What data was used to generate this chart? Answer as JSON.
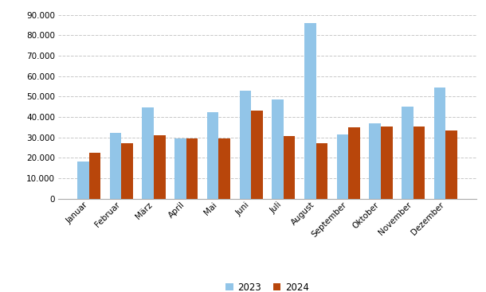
{
  "months": [
    "Januar",
    "Februar",
    "März",
    "April",
    "Mai",
    "Juni",
    "Juli",
    "August",
    "September",
    "Oktober",
    "November",
    "Dezember"
  ],
  "values_2023": [
    18000,
    32000,
    44500,
    29500,
    42500,
    53000,
    48500,
    86000,
    31500,
    37000,
    45000,
    54500
  ],
  "values_2024": [
    22500,
    27000,
    31000,
    29500,
    29500,
    43000,
    30500,
    27000,
    35000,
    35500,
    35500,
    33500
  ],
  "color_2023": "#92C5E8",
  "color_2024": "#B8460B",
  "legend_2023": "2023",
  "legend_2024": "2024",
  "ylim": [
    0,
    93000
  ],
  "yticks": [
    0,
    10000,
    20000,
    30000,
    40000,
    50000,
    60000,
    70000,
    80000,
    90000
  ],
  "ytick_labels": [
    "0",
    "10.000",
    "20.000",
    "30.000",
    "40.000",
    "50.000",
    "60.000",
    "70.000",
    "80.000",
    "90.000"
  ],
  "background_color": "#ffffff",
  "grid_color": "#c8c8c8",
  "bar_width": 0.36,
  "figsize": [
    6.1,
    3.67
  ],
  "dpi": 100
}
